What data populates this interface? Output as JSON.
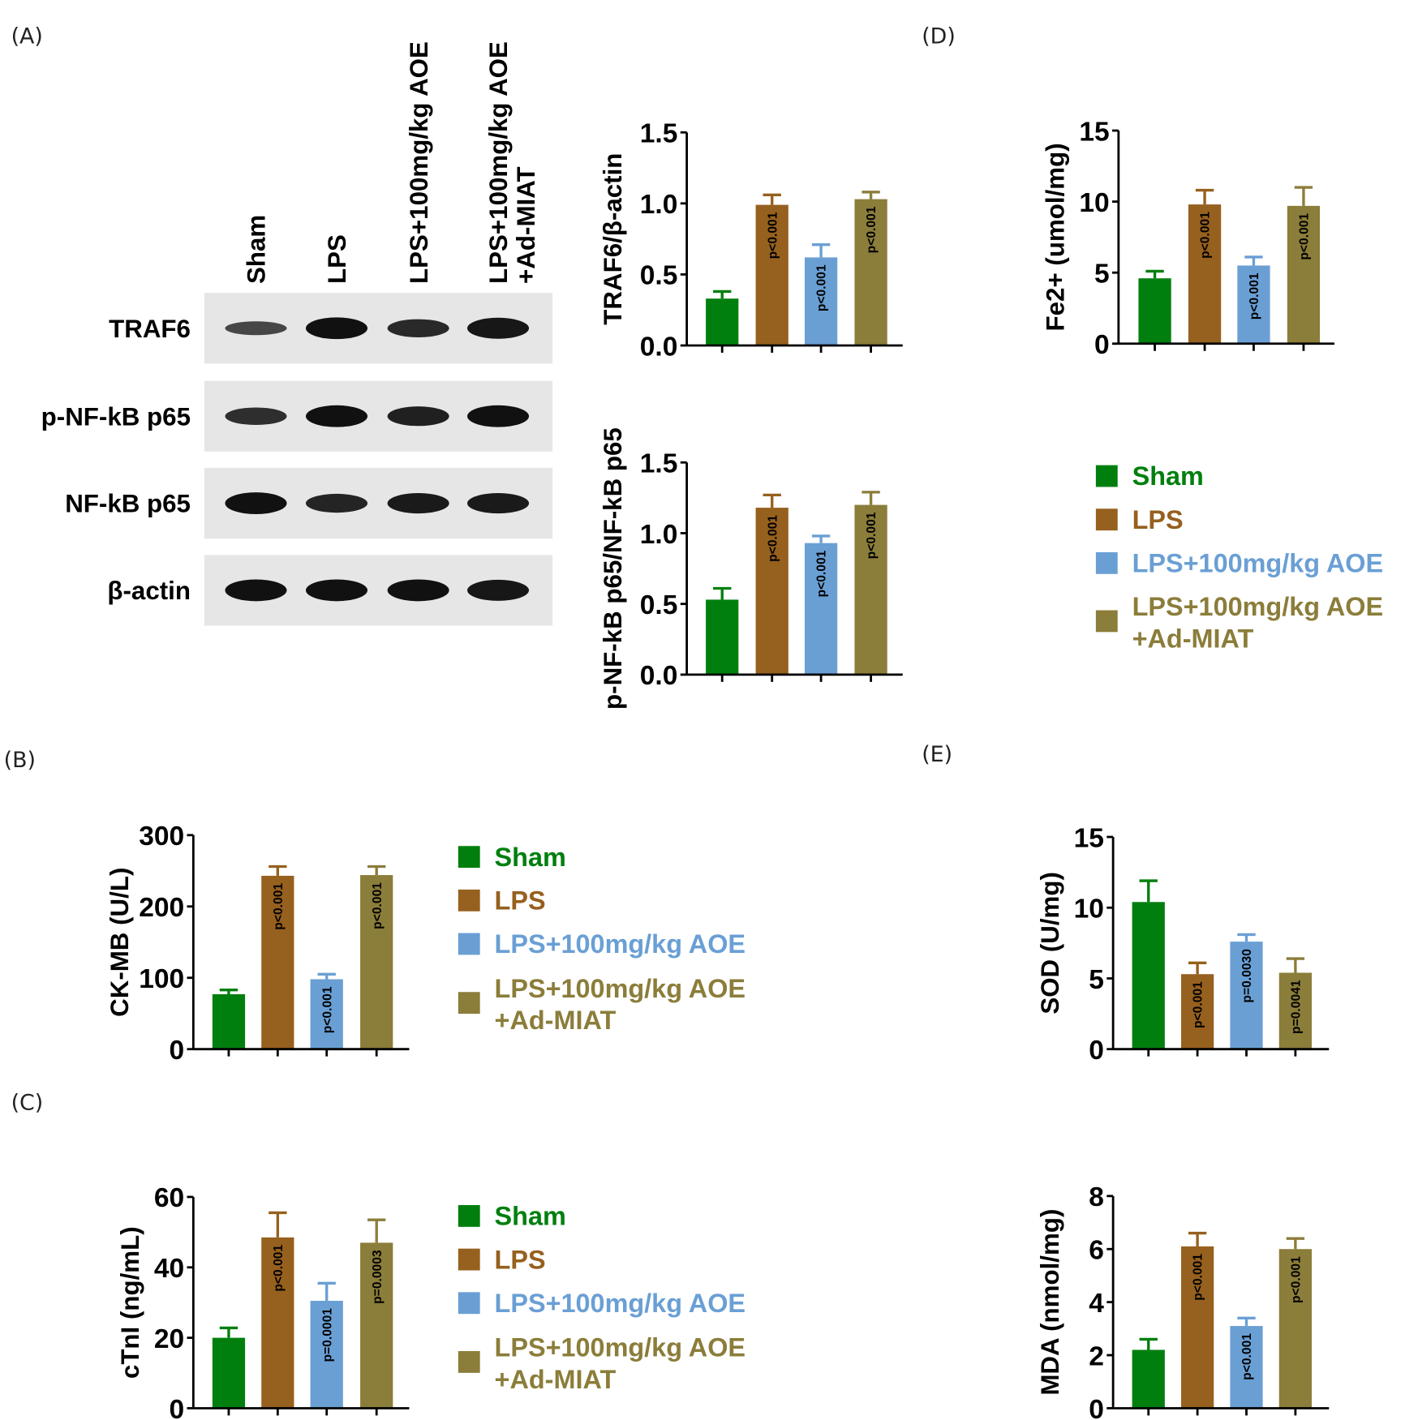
{
  "colors": {
    "sham": "#007f0e",
    "lps": "#96601e",
    "aoe": "#6a9fd4",
    "miat": "#8b7d3a",
    "axis": "#000000"
  },
  "panel_labels": [
    "(A)",
    "(B)",
    "(C)",
    "(D)",
    "(E)"
  ],
  "blot": {
    "columns": [
      [
        "Sham"
      ],
      [
        "LPS"
      ],
      [
        "LPS+100mg/kg AOE"
      ],
      [
        "LPS+100mg/kg AOE",
        "+Ad-MIAT"
      ]
    ],
    "rows": [
      "TRAF6",
      "p-NF-kB p65",
      "NF-kB p65",
      "β-actin"
    ],
    "band_intensity": [
      [
        0.45,
        1.0,
        0.75,
        0.95
      ],
      [
        0.7,
        1.0,
        0.85,
        1.0
      ],
      [
        1.0,
        0.8,
        0.9,
        0.9
      ],
      [
        1.0,
        1.0,
        1.0,
        0.95
      ]
    ]
  },
  "legend": {
    "items": [
      {
        "lines": [
          "Sham"
        ],
        "color": "#007f0e"
      },
      {
        "lines": [
          "LPS"
        ],
        "color": "#96601e"
      },
      {
        "lines": [
          "LPS+100mg/kg AOE"
        ],
        "color": "#6a9fd4"
      },
      {
        "lines": [
          "LPS+100mg/kg AOE",
          "+Ad-MIAT"
        ],
        "color": "#8b7d3a"
      }
    ]
  },
  "chart_data": [
    {
      "id": "traf6",
      "type": "bar",
      "ylabel": "TRAF6/β-actin",
      "ylim": [
        0,
        1.5
      ],
      "yticks": [
        "0.0",
        "0.5",
        "1.0",
        "1.5"
      ],
      "ytick_values": [
        0,
        0.5,
        1.0,
        1.5
      ],
      "categories": [
        "Sham",
        "LPS",
        "LPS+100mg/kg AOE",
        "LPS+100mg/kg AOE +Ad-MIAT"
      ],
      "values": [
        0.33,
        0.99,
        0.62,
        1.03
      ],
      "errors": [
        0.05,
        0.07,
        0.09,
        0.05
      ],
      "annotations": [
        "",
        "p<0.001",
        "p<0.001",
        "p<0.001"
      ]
    },
    {
      "id": "pnfkb",
      "type": "bar",
      "ylabel": "p-NF-kB p65/NF-kB p65",
      "ylim": [
        0,
        1.5
      ],
      "yticks": [
        "0.0",
        "0.5",
        "1.0",
        "1.5"
      ],
      "ytick_values": [
        0,
        0.5,
        1.0,
        1.5
      ],
      "categories": [
        "Sham",
        "LPS",
        "LPS+100mg/kg AOE",
        "LPS+100mg/kg AOE +Ad-MIAT"
      ],
      "values": [
        0.53,
        1.18,
        0.93,
        1.2
      ],
      "errors": [
        0.08,
        0.09,
        0.05,
        0.09
      ],
      "annotations": [
        "",
        "p<0.001",
        "p<0.001",
        "p<0.001"
      ]
    },
    {
      "id": "fe2",
      "type": "bar",
      "ylabel": "Fe2+ (umol/mg)",
      "ylim": [
        0,
        15
      ],
      "yticks": [
        "0",
        "5",
        "10",
        "15"
      ],
      "ytick_values": [
        0,
        5,
        10,
        15
      ],
      "categories": [
        "Sham",
        "LPS",
        "LPS+100mg/kg AOE",
        "LPS+100mg/kg AOE +Ad-MIAT"
      ],
      "values": [
        4.6,
        9.8,
        5.5,
        9.7
      ],
      "errors": [
        0.5,
        1.0,
        0.6,
        1.3
      ],
      "annotations": [
        "",
        "p<0.001",
        "p<0.001",
        "p<0.001"
      ]
    },
    {
      "id": "ckmb",
      "type": "bar",
      "ylabel": "CK-MB (U/L)",
      "ylim": [
        0,
        300
      ],
      "yticks": [
        "0",
        "100",
        "200",
        "300"
      ],
      "ytick_values": [
        0,
        100,
        200,
        300
      ],
      "categories": [
        "Sham",
        "LPS",
        "LPS+100mg/kg AOE",
        "LPS+100mg/kg AOE +Ad-MIAT"
      ],
      "values": [
        77,
        243,
        98,
        244
      ],
      "errors": [
        6,
        13,
        7,
        12
      ],
      "annotations": [
        "",
        "p<0.001",
        "p<0.001",
        "p<0.001"
      ]
    },
    {
      "id": "ctni",
      "type": "bar",
      "ylabel": "cTnI (ng/mL)",
      "ylim": [
        0,
        60
      ],
      "yticks": [
        "0",
        "20",
        "40",
        "60"
      ],
      "ytick_values": [
        0,
        20,
        40,
        60
      ],
      "categories": [
        "Sham",
        "LPS",
        "LPS+100mg/kg AOE",
        "LPS+100mg/kg AOE +Ad-MIAT"
      ],
      "values": [
        20,
        48.5,
        30.5,
        47
      ],
      "errors": [
        2.8,
        7,
        5,
        6.5
      ],
      "annotations": [
        "",
        "p<0.001",
        "p=0.0001",
        "p=0.0003"
      ]
    },
    {
      "id": "sod",
      "type": "bar",
      "ylabel": "SOD (U/mg)",
      "ylim": [
        0,
        15
      ],
      "yticks": [
        "0",
        "5",
        "10",
        "15"
      ],
      "ytick_values": [
        0,
        5,
        10,
        15
      ],
      "categories": [
        "Sham",
        "LPS",
        "LPS+100mg/kg AOE",
        "LPS+100mg/kg AOE +Ad-MIAT"
      ],
      "values": [
        10.4,
        5.3,
        7.6,
        5.4
      ],
      "errors": [
        1.5,
        0.8,
        0.5,
        1.0
      ],
      "annotations": [
        "",
        "p<0.001",
        "p=0.0030",
        "p=0.0041"
      ]
    },
    {
      "id": "mda",
      "type": "bar",
      "ylabel": "MDA (nmol/mg)",
      "ylim": [
        0,
        8
      ],
      "yticks": [
        "0",
        "2",
        "4",
        "6",
        "8"
      ],
      "ytick_values": [
        0,
        2,
        4,
        6,
        8
      ],
      "categories": [
        "Sham",
        "LPS",
        "LPS+100mg/kg AOE",
        "LPS+100mg/kg AOE +Ad-MIAT"
      ],
      "values": [
        2.2,
        6.1,
        3.1,
        6.0
      ],
      "errors": [
        0.4,
        0.5,
        0.3,
        0.4
      ],
      "annotations": [
        "",
        "p<0.001",
        "p<0.001",
        "p<0.001"
      ]
    }
  ]
}
